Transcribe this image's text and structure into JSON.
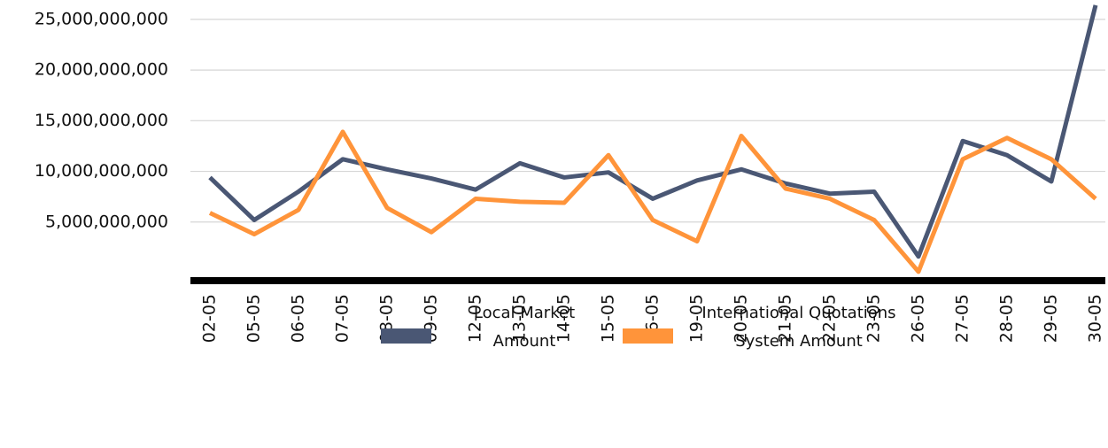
{
  "chart_data": {
    "type": "line",
    "categories": [
      "02-05",
      "05-05",
      "06-05",
      "07-05",
      "08-05",
      "09-05",
      "12-05",
      "13-05",
      "14-05",
      "15-05",
      "16-05",
      "19-05",
      "20-05",
      "21-05",
      "22-05",
      "23-05",
      "26-05",
      "27-05",
      "28-05",
      "29-05",
      "30-05"
    ],
    "series": [
      {
        "name": "Local Market Amount",
        "color": "#4a5774",
        "values": [
          9400000000,
          5200000000,
          8000000000,
          11200000000,
          10200000000,
          9300000000,
          8200000000,
          10800000000,
          9400000000,
          9900000000,
          7300000000,
          9100000000,
          10200000000,
          8800000000,
          7800000000,
          8000000000,
          1600000000,
          13000000000,
          11600000000,
          9000000000,
          26400000000
        ]
      },
      {
        "name": "International Quotations System Amount",
        "color": "#ff943a",
        "values": [
          5900000000,
          3800000000,
          6200000000,
          13900000000,
          6400000000,
          4000000000,
          7300000000,
          7000000000,
          6900000000,
          11600000000,
          5200000000,
          3100000000,
          13500000000,
          8300000000,
          7300000000,
          5200000000,
          100000000,
          11200000000,
          13300000000,
          11200000000,
          7300000000
        ]
      }
    ],
    "ylim": [
      0,
      27000000000
    ],
    "yticks": [
      {
        "value": 5000000000,
        "label": "5,000,000,000"
      },
      {
        "value": 10000000000,
        "label": "10,000,000,000"
      },
      {
        "value": 15000000000,
        "label": "15,000,000,000"
      },
      {
        "value": 20000000000,
        "label": "20,000,000,000"
      },
      {
        "value": 25000000000,
        "label": "25,000,000,000"
      }
    ],
    "grid": true,
    "legend": "bottom"
  }
}
